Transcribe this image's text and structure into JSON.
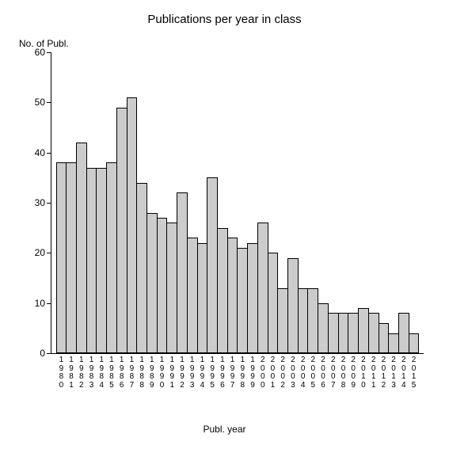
{
  "chart": {
    "type": "bar",
    "title": "Publications per year in class",
    "title_fontsize": 15,
    "y_axis_title": "No. of Publ.",
    "x_axis_title": "Publ. year",
    "label_fontsize": 12,
    "tick_fontsize": 12,
    "x_tick_fontsize": 10,
    "ylim": [
      0,
      60
    ],
    "ytick_step": 10,
    "yticks": [
      0,
      10,
      20,
      30,
      40,
      50,
      60
    ],
    "bar_fill": "#cccccc",
    "bar_border": "#000000",
    "axis_color": "#000000",
    "background_color": "#ffffff",
    "text_color": "#000000",
    "categories": [
      "1980",
      "1981",
      "1982",
      "1983",
      "1984",
      "1985",
      "1986",
      "1987",
      "1988",
      "1989",
      "1990",
      "1991",
      "1992",
      "1993",
      "1994",
      "1995",
      "1996",
      "1997",
      "1998",
      "1999",
      "2000",
      "2001",
      "2002",
      "2003",
      "2004",
      "2005",
      "2006",
      "2007",
      "2008",
      "2009",
      "2010",
      "2011",
      "2012",
      "2013",
      "2014",
      "2015"
    ],
    "values": [
      38,
      38,
      42,
      37,
      37,
      38,
      49,
      51,
      34,
      28,
      27,
      26,
      32,
      23,
      22,
      35,
      25,
      23,
      21,
      22,
      26,
      20,
      13,
      19,
      13,
      13,
      10,
      8,
      8,
      8,
      9,
      8,
      6,
      4,
      8,
      4
    ]
  }
}
